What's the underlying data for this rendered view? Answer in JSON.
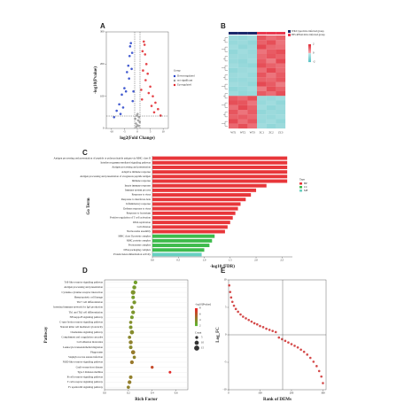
{
  "chart_data": [
    {
      "type": "scatter",
      "label": "A",
      "x_label": "log2(Fold Change)",
      "y_label": "-log10(Pvalue)",
      "legend_title": "Group",
      "xlim": [
        -12,
        12
      ],
      "xticks": [
        -10,
        -5,
        0,
        5,
        10
      ],
      "ylim": [
        0,
        300
      ],
      "yticks": [
        0,
        100,
        200,
        300
      ],
      "series": [
        {
          "name": "Down-regulated",
          "color": "#2340c8",
          "x": [
            -1.5,
            -2,
            -2.5,
            -3,
            -3.5,
            -4,
            -5,
            -6,
            -7,
            -8,
            -9,
            -2.2,
            -3.2,
            -4.4,
            -1.8,
            -5.5,
            -6.5,
            -2.8
          ],
          "values": [
            115,
            235,
            265,
            225,
            195,
            175,
            125,
            105,
            75,
            55,
            35,
            185,
            155,
            115,
            85,
            65,
            45,
            255
          ]
        },
        {
          "name": "not significant",
          "color": "#9a9a9a",
          "x": [
            -0.8,
            -0.5,
            -0.2,
            0,
            0.3,
            0.6,
            0.9,
            -0.4,
            0.5,
            0.1
          ],
          "values": [
            30,
            15,
            40,
            10,
            25,
            35,
            20,
            5,
            8,
            45
          ]
        },
        {
          "name": "Up-regulated",
          "color": "#e0252a",
          "x": [
            1.5,
            2,
            2.5,
            3,
            3.5,
            4,
            5,
            6,
            7,
            8,
            9,
            2.2,
            3.2,
            4.4,
            1.8,
            5.5,
            6.5,
            2.8
          ],
          "values": [
            120,
            240,
            270,
            230,
            200,
            170,
            130,
            100,
            80,
            60,
            40,
            180,
            150,
            110,
            90,
            70,
            50,
            260
          ]
        }
      ]
    },
    {
      "type": "heatmap",
      "label": "B",
      "categories": [
        "WT1",
        "WT2",
        "WT3",
        "ZC1",
        "ZC2",
        "ZC3"
      ],
      "zlim": [
        -2,
        2
      ],
      "zticks": [
        -2,
        0,
        2
      ],
      "low_color": "#5cc3c6",
      "high_color": "#e2303b",
      "groups": [
        {
          "name": "Wild type mice infected group",
          "color": "#1b2a6b"
        },
        {
          "name": "P65-RNAi mice infected group",
          "color": "#e8384f"
        }
      ],
      "values": [
        [
          -0.7,
          -0.8,
          -0.6,
          1.4,
          1.0,
          1.2
        ],
        [
          -0.8,
          -0.7,
          -0.9,
          1.2,
          1.5,
          0.9
        ],
        [
          -0.6,
          -0.9,
          -0.7,
          1.6,
          1.1,
          1.0
        ],
        [
          -0.9,
          -0.6,
          -0.8,
          0.9,
          1.3,
          1.5
        ],
        [
          -0.7,
          -0.7,
          -0.7,
          1.1,
          1.4,
          1.2
        ],
        [
          -0.8,
          -0.9,
          -0.6,
          1.3,
          0.8,
          1.6
        ],
        [
          -0.6,
          -0.8,
          -0.9,
          1.5,
          1.2,
          1.0
        ],
        [
          -0.9,
          -0.7,
          -0.6,
          1.0,
          1.6,
          1.1
        ],
        [
          -0.7,
          -0.6,
          -0.8,
          1.4,
          0.9,
          1.3
        ],
        [
          -0.8,
          -0.8,
          -0.7,
          1.2,
          1.1,
          1.4
        ],
        [
          -0.6,
          -0.7,
          -0.9,
          1.6,
          1.3,
          0.8
        ],
        [
          -0.9,
          -0.8,
          -0.6,
          0.8,
          1.5,
          1.2
        ],
        [
          -0.7,
          -0.9,
          -0.8,
          1.3,
          1.0,
          1.5
        ],
        [
          1.3,
          1.1,
          1.5,
          -0.7,
          -0.8,
          -0.6
        ],
        [
          1.5,
          1.4,
          0.9,
          -0.8,
          -0.6,
          -0.9
        ],
        [
          1.0,
          1.6,
          1.2,
          -0.6,
          -0.9,
          -0.7
        ],
        [
          1.4,
          0.9,
          1.3,
          -0.9,
          -0.7,
          -0.8
        ],
        [
          1.2,
          1.3,
          1.1,
          -0.7,
          -0.8,
          -0.6
        ],
        [
          1.6,
          1.0,
          1.4,
          -0.8,
          -0.6,
          -0.9
        ],
        [
          1.1,
          1.5,
          1.0,
          -0.6,
          -0.9,
          -0.7
        ]
      ]
    },
    {
      "type": "hbar",
      "label": "C",
      "x_label": "-log10 (FDR)",
      "y_label": "Go Term",
      "legend_title": "Type",
      "xlim": [
        0,
        2.7
      ],
      "xticks": [
        {
          "value": 0,
          "label": "0.0"
        },
        0.5,
        {
          "value": 1,
          "label": "1.0"
        },
        1.5,
        {
          "value": 2,
          "label": "2.0"
        },
        2.5
      ],
      "categories": [
        "Antigen processing and presentation of peptide or polysaccharide antigen via MHC class II",
        "Interferon-gamma-mediated signaling pathway",
        "Antigen processing and presentation",
        "Adaptive immune response",
        "Antigen processing and presentation of exogenous peptide antigen",
        "Immune response",
        "Innate immune response",
        "Immune system process",
        "Response to virus",
        "Response to interferon-beta",
        "Inflammatory response",
        "Defense response to virus",
        "Response to bacterium",
        "Positive regulation of T cell activation",
        "DNA replication",
        "Cell division",
        "Nucleosome assembly",
        "MHC class II protein complex",
        "MHC protein complex",
        "Proteasome complex",
        "DNA packaging complex",
        "Protein heterodimerization activity"
      ],
      "series": [
        {
          "name": "BP",
          "color": "#e8363a",
          "values": [
            2.6,
            2.6,
            2.6,
            2.6,
            2.6,
            2.6,
            2.2,
            2.0,
            1.9,
            1.8,
            1.7,
            1.65,
            1.6,
            1.55,
            1.5,
            1.45,
            1.4,
            null,
            null,
            null,
            null,
            null
          ]
        },
        {
          "name": "CC",
          "color": "#3dbb4c",
          "values": [
            null,
            null,
            null,
            null,
            null,
            null,
            null,
            null,
            null,
            null,
            null,
            null,
            null,
            null,
            null,
            null,
            null,
            1.2,
            1.15,
            1.1,
            1.0,
            null
          ]
        },
        {
          "name": "MF",
          "color": "#68d0c0",
          "values": [
            null,
            null,
            null,
            null,
            null,
            null,
            null,
            null,
            null,
            null,
            null,
            null,
            null,
            null,
            null,
            null,
            null,
            null,
            null,
            null,
            null,
            0.95
          ]
        }
      ]
    },
    {
      "type": "dot",
      "label": "D",
      "x_label": "Rich Factor",
      "y_label": "Pathway",
      "color_title": "-log10(Pvalue)",
      "size_title": "Count",
      "xlim": [
        0,
        0.7
      ],
      "xticks": [
        {
          "value": 0,
          "label": "0.0"
        },
        0.2,
        0.4,
        0.6
      ],
      "low_color": "#5cb82e",
      "high_color": "#e8262a",
      "zlim": [
        2,
        8
      ],
      "zticks": [
        2,
        4,
        6,
        8
      ],
      "size_ticks": [
        5,
        10,
        15
      ],
      "categories": [
        "Toll-like receptor signaling pathway",
        "Antigen processing and presentation",
        "Cytokine-cytokine receptor interaction",
        "Hematopoietic cell lineage",
        "Th17 cell differentiation",
        "Intestinal immune network for IgA production",
        "Th1 and Th2 cell differentiation",
        "NF-kappa B signaling pathway",
        "C-type lectin receptor signaling pathway",
        "Natural killer cell mediated cytotoxicity",
        "Chemokine signaling pathway",
        "Complement and coagulation cascades",
        "Cell adhesion molecules",
        "Leukocyte transendothelial migration",
        "Phagosome",
        "Staphylococcus aureus infection",
        "NOD-like receptor signaling pathway",
        "Graft-versus-host disease",
        "Type I diabetes mellitus",
        "B cell receptor signaling pathway",
        "T cell receptor signaling pathway",
        "Fc epsilon RI signaling pathway"
      ],
      "x": [
        0.26,
        0.25,
        0.24,
        0.24,
        0.25,
        0.23,
        0.24,
        0.23,
        0.22,
        0.22,
        0.23,
        0.21,
        0.22,
        0.22,
        0.24,
        0.25,
        0.23,
        0.4,
        0.55,
        0.22,
        0.21,
        0.2
      ],
      "values": [
        3,
        3.2,
        3.5,
        3.1,
        3.3,
        3.6,
        3.4,
        3.2,
        3.7,
        3.5,
        3.8,
        4,
        4.2,
        3.9,
        4.5,
        4.1,
        4.6,
        6.5,
        7.8,
        4.3,
        4.4,
        4.2
      ],
      "counts": [
        8,
        9,
        12,
        7,
        8,
        6,
        8,
        7,
        6,
        7,
        10,
        6,
        9,
        7,
        10,
        6,
        8,
        5,
        4,
        7,
        8,
        6
      ]
    },
    {
      "type": "scatter",
      "label": "E",
      "x_label": "Rank of DEMs",
      "y_label": "Log_FC",
      "color": "#cc2a2a",
      "xlim": [
        0,
        310
      ],
      "xticks": [
        0,
        100,
        200,
        300
      ],
      "ylim": [
        -10,
        10
      ],
      "yticks": [
        -10,
        -5,
        0,
        5,
        10
      ],
      "x": [
        2,
        5,
        8,
        12,
        17,
        23,
        30,
        38,
        46,
        55,
        64,
        73,
        82,
        91,
        100,
        110,
        120,
        130,
        140,
        150,
        160,
        170,
        180,
        190,
        200,
        210,
        220,
        230,
        240,
        250,
        260,
        270,
        280,
        288,
        295,
        300
      ],
      "values": [
        9,
        7.8,
        6.8,
        6,
        5.3,
        4.7,
        4.2,
        3.7,
        3.3,
        3,
        2.7,
        2.4,
        2.1,
        1.9,
        1.6,
        1.4,
        1.1,
        0.9,
        0.7,
        0.5,
        -0.5,
        -0.8,
        -1.1,
        -1.4,
        -1.7,
        -2,
        -2.3,
        -2.7,
        -3.1,
        -3.6,
        -4.2,
        -4.9,
        -5.7,
        -6.6,
        -7.6,
        -8.8
      ]
    }
  ]
}
